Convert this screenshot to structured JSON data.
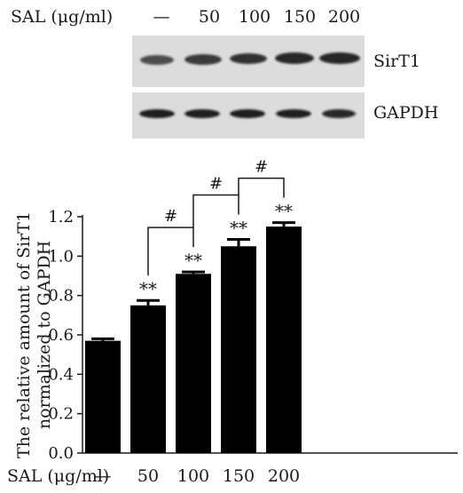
{
  "blot": {
    "treatment_label": "SAL (μg/ml)",
    "concentrations": [
      "—",
      "50",
      "100",
      "150",
      "200"
    ],
    "rows": [
      {
        "protein": "SirT1",
        "intensity": [
          0.75,
          0.85,
          0.9,
          0.95,
          0.95
        ]
      },
      {
        "protein": "GAPDH",
        "intensity": [
          1.0,
          1.0,
          1.0,
          1.0,
          0.95
        ]
      }
    ]
  },
  "chart_data": {
    "type": "bar",
    "categories": [
      "—",
      "50",
      "100",
      "150",
      "200"
    ],
    "values": [
      0.57,
      0.75,
      0.91,
      1.05,
      1.15
    ],
    "errors": [
      0.01,
      0.025,
      0.01,
      0.035,
      0.02
    ],
    "xlabel": "SAL (μg/ml)",
    "ylabel": "The relative amount of SirT1 normalized to GAPDH",
    "ylim": [
      0.0,
      1.2
    ],
    "yticks": [
      "0.0",
      "0.2",
      "0.4",
      "0.6",
      "0.8",
      "1.0",
      "1.2"
    ],
    "significance_marks": [
      "",
      "**",
      "**",
      "**",
      "**"
    ],
    "brackets": [
      {
        "from": "50",
        "to": "100",
        "label": "#"
      },
      {
        "from": "100",
        "to": "150",
        "label": "#"
      },
      {
        "from": "150",
        "to": "200",
        "label": "#"
      }
    ],
    "bar_color": "#000000"
  }
}
